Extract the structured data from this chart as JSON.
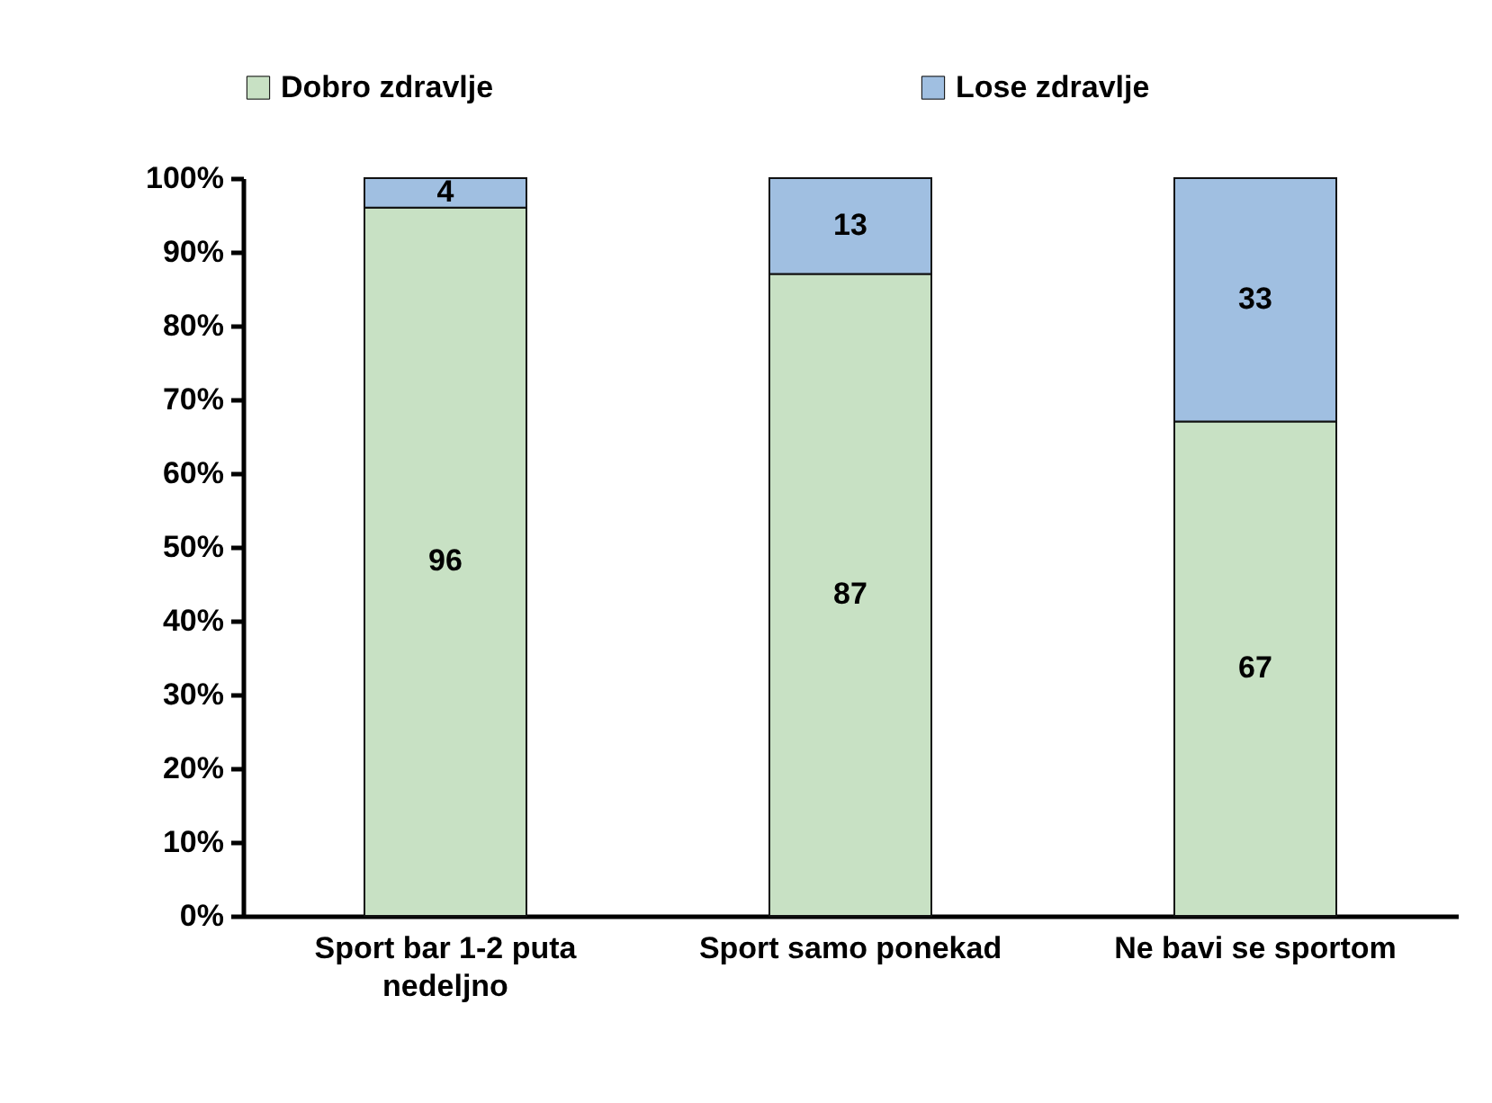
{
  "chart_data": {
    "type": "bar",
    "stacked": true,
    "categories": [
      "Sport bar 1-2 puta nedeljno",
      "Sport samo ponekad",
      "Ne bavi se sportom"
    ],
    "series": [
      {
        "name": "Dobro zdravlje",
        "color": "#c8e1c4",
        "values": [
          96,
          87,
          67
        ]
      },
      {
        "name": "Lose zdravlje",
        "color": "#a0bfe1",
        "values": [
          4,
          13,
          33
        ]
      }
    ],
    "ylim": [
      0,
      100
    ],
    "yticks": [
      {
        "value": 0,
        "label": "0%"
      },
      {
        "value": 10,
        "label": "10%"
      },
      {
        "value": 20,
        "label": "20%"
      },
      {
        "value": 30,
        "label": "30%"
      },
      {
        "value": 40,
        "label": "40%"
      },
      {
        "value": 50,
        "label": "50%"
      },
      {
        "value": 60,
        "label": "60%"
      },
      {
        "value": 70,
        "label": "70%"
      },
      {
        "value": 80,
        "label": "80%"
      },
      {
        "value": 90,
        "label": "90%"
      },
      {
        "value": 100,
        "label": "100%"
      }
    ],
    "data_labels": true,
    "legend": "top"
  }
}
